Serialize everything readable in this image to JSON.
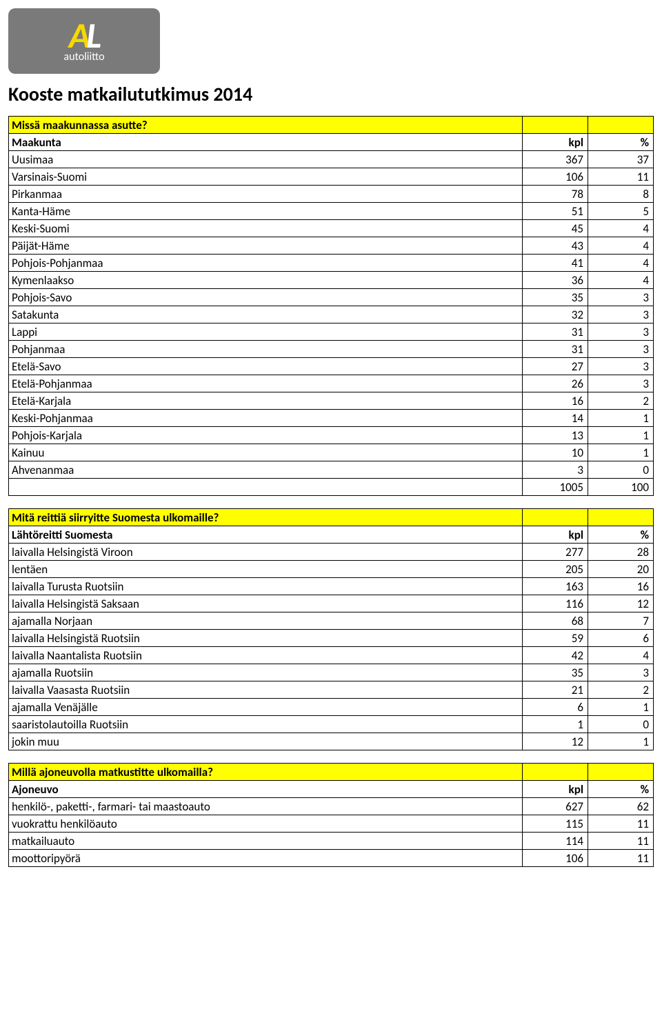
{
  "logo": {
    "a": "A",
    "l": "L",
    "sub": "autoliitto"
  },
  "title": "Kooste matkailututkimus 2014",
  "tables": [
    {
      "question": "Missä maakunnassa asutte?",
      "head": [
        "Maakunta",
        "kpl",
        "%"
      ],
      "rows": [
        [
          "Uusimaa",
          "367",
          "37"
        ],
        [
          "Varsinais-Suomi",
          "106",
          "11"
        ],
        [
          "Pirkanmaa",
          "78",
          "8"
        ],
        [
          "Kanta-Häme",
          "51",
          "5"
        ],
        [
          "Keski-Suomi",
          "45",
          "4"
        ],
        [
          "Päijät-Häme",
          "43",
          "4"
        ],
        [
          "Pohjois-Pohjanmaa",
          "41",
          "4"
        ],
        [
          "Kymenlaakso",
          "36",
          "4"
        ],
        [
          "Pohjois-Savo",
          "35",
          "3"
        ],
        [
          "Satakunta",
          "32",
          "3"
        ],
        [
          "Lappi",
          "31",
          "3"
        ],
        [
          "Pohjanmaa",
          "31",
          "3"
        ],
        [
          "Etelä-Savo",
          "27",
          "3"
        ],
        [
          "Etelä-Pohjanmaa",
          "26",
          "3"
        ],
        [
          "Etelä-Karjala",
          "16",
          "2"
        ],
        [
          "Keski-Pohjanmaa",
          "14",
          "1"
        ],
        [
          "Pohjois-Karjala",
          "13",
          "1"
        ],
        [
          "Kainuu",
          "10",
          "1"
        ],
        [
          "Ahvenanmaa",
          "3",
          "0"
        ],
        [
          "",
          "1005",
          "100"
        ]
      ]
    },
    {
      "question": "Mitä reittiä siirryitte Suomesta ulkomaille?",
      "head": [
        "Lähtöreitti Suomesta",
        "kpl",
        "%"
      ],
      "rows": [
        [
          "laivalla Helsingistä Viroon",
          "277",
          "28"
        ],
        [
          "lentäen",
          "205",
          "20"
        ],
        [
          "laivalla Turusta Ruotsiin",
          "163",
          "16"
        ],
        [
          "laivalla Helsingistä Saksaan",
          "116",
          "12"
        ],
        [
          "ajamalla Norjaan",
          "68",
          "7"
        ],
        [
          "laivalla Helsingistä Ruotsiin",
          "59",
          "6"
        ],
        [
          "laivalla Naantalista Ruotsiin",
          "42",
          "4"
        ],
        [
          "ajamalla Ruotsiin",
          "35",
          "3"
        ],
        [
          "laivalla Vaasasta Ruotsiin",
          "21",
          "2"
        ],
        [
          "ajamalla Venäjälle",
          "6",
          "1"
        ],
        [
          "saaristolautoilla Ruotsiin",
          "1",
          "0"
        ],
        [
          "jokin muu",
          "12",
          "1"
        ]
      ]
    },
    {
      "question": "Millä ajoneuvolla matkustitte ulkomailla?",
      "head": [
        "Ajoneuvo",
        "kpl",
        "%"
      ],
      "rows": [
        [
          "henkilö-, paketti-, farmari- tai maastoauto",
          "627",
          "62"
        ],
        [
          "vuokrattu henkilöauto",
          "115",
          "11"
        ],
        [
          "matkailuauto",
          "114",
          "11"
        ],
        [
          "moottoripyörä",
          "106",
          "11"
        ]
      ]
    }
  ]
}
